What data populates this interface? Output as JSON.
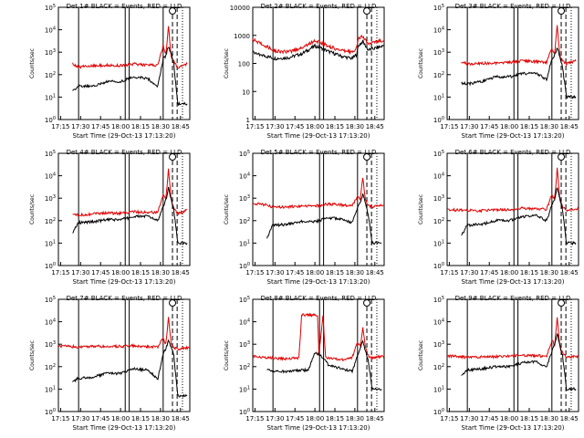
{
  "colors": {
    "background": "#ffffff",
    "axes": "#000000",
    "events": "#000000",
    "lld": "#e00000"
  },
  "shared": {
    "ylabel": "Counts/sec",
    "xlabel": "Start Time (29-Oct-13 17:13:20)",
    "xticks": [
      "17:15",
      "17:30",
      "17:45",
      "18:00",
      "18:15",
      "18:30",
      "18:45"
    ],
    "xtick_minutes": [
      15,
      30,
      45,
      60,
      75,
      90,
      105
    ],
    "xrange_minutes": [
      13.33,
      112
    ],
    "solid_marker_minutes": [
      28.5,
      63.5,
      66.5,
      92.0
    ],
    "dashed_marker_minutes": [
      99.0,
      102.5
    ],
    "dotted_marker_minutes": [
      106.5
    ],
    "circle_marker_minute": 99.0
  },
  "chart_data": [
    {
      "type": "line",
      "title": "Det 1# BLACK = Events, RED = LLD",
      "yscale": "log",
      "ylim": [
        1,
        100000
      ],
      "yticks": [
        "10^0",
        "10^1",
        "10^2",
        "10^3",
        "10^4",
        "10^5"
      ],
      "series": [
        {
          "name": "Events",
          "color": "#000000",
          "minutes": [
            24,
            28,
            40,
            50,
            60,
            70,
            80,
            88,
            92,
            94,
            96,
            98,
            100,
            103,
            110
          ],
          "values": [
            20,
            30,
            30,
            50,
            50,
            80,
            70,
            30,
            500,
            700,
            1800,
            900,
            300,
            5,
            5
          ]
        },
        {
          "name": "LLD",
          "color": "#e00000",
          "minutes": [
            24,
            28,
            40,
            50,
            60,
            70,
            80,
            88,
            92,
            94,
            96,
            98,
            100,
            103,
            110
          ],
          "values": [
            300,
            220,
            250,
            260,
            250,
            300,
            260,
            260,
            2000,
            800,
            15000,
            600,
            400,
            200,
            300
          ]
        }
      ]
    },
    {
      "type": "line",
      "title": "Det 2# BLACK = Events, RED = LLD",
      "yscale": "log",
      "ylim": [
        1,
        10000
      ],
      "yticks": [
        "1",
        "10",
        "100",
        "1000",
        "10000"
      ],
      "series": [
        {
          "name": "Events",
          "color": "#000000",
          "minutes": [
            13.33,
            20,
            30,
            40,
            50,
            55,
            60,
            65,
            70,
            80,
            88,
            91,
            93,
            96,
            100,
            110,
            112
          ],
          "values": [
            260,
            200,
            150,
            160,
            220,
            300,
            420,
            350,
            270,
            180,
            150,
            200,
            450,
            600,
            300,
            400,
            450
          ]
        },
        {
          "name": "LLD",
          "color": "#e00000",
          "minutes": [
            13.33,
            20,
            30,
            40,
            50,
            55,
            60,
            65,
            70,
            80,
            88,
            91,
            93,
            96,
            100,
            110,
            112
          ],
          "values": [
            700,
            500,
            280,
            250,
            360,
            480,
            650,
            550,
            420,
            280,
            260,
            350,
            800,
            900,
            500,
            650,
            700
          ]
        }
      ]
    },
    {
      "type": "line",
      "title": "Det 3# BLACK = Events, RED = LLD",
      "yscale": "log",
      "ylim": [
        1,
        100000
      ],
      "yticks": [
        "10^0",
        "10^1",
        "10^2",
        "10^3",
        "10^4",
        "10^5"
      ],
      "series": [
        {
          "name": "Events",
          "color": "#000000",
          "minutes": [
            24,
            30,
            40,
            50,
            60,
            70,
            80,
            88,
            92,
            94,
            96,
            98,
            100,
            103,
            110
          ],
          "values": [
            40,
            40,
            50,
            80,
            80,
            110,
            120,
            60,
            500,
            700,
            1500,
            700,
            200,
            10,
            10
          ]
        },
        {
          "name": "LLD",
          "color": "#e00000",
          "minutes": [
            24,
            30,
            40,
            50,
            60,
            70,
            80,
            88,
            92,
            94,
            96,
            98,
            100,
            103,
            110
          ],
          "values": [
            350,
            300,
            320,
            330,
            350,
            420,
            380,
            350,
            1500,
            800,
            15000,
            700,
            400,
            300,
            400
          ]
        }
      ]
    },
    {
      "type": "line",
      "title": "Det 4# BLACK = Events, RED = LLD",
      "yscale": "log",
      "ylim": [
        1,
        100000
      ],
      "yticks": [
        "10^0",
        "10^1",
        "10^2",
        "10^3",
        "10^4",
        "10^5"
      ],
      "series": [
        {
          "name": "Events",
          "color": "#000000",
          "minutes": [
            24,
            28,
            40,
            50,
            60,
            70,
            80,
            88,
            92,
            94,
            96,
            98,
            100,
            103,
            110
          ],
          "values": [
            30,
            80,
            90,
            110,
            110,
            150,
            160,
            100,
            400,
            800,
            3000,
            900,
            300,
            10,
            10
          ]
        },
        {
          "name": "LLD",
          "color": "#e00000",
          "minutes": [
            24,
            28,
            40,
            50,
            60,
            70,
            80,
            88,
            92,
            94,
            96,
            98,
            100,
            103,
            110
          ],
          "values": [
            200,
            180,
            200,
            220,
            210,
            250,
            230,
            230,
            1500,
            900,
            20000,
            900,
            400,
            200,
            300
          ]
        }
      ]
    },
    {
      "type": "line",
      "title": "Det 5# BLACK = Events, RED = LLD",
      "yscale": "log",
      "ylim": [
        1,
        100000
      ],
      "yticks": [
        "10^0",
        "10^1",
        "10^2",
        "10^3",
        "10^4",
        "10^5"
      ],
      "series": [
        {
          "name": "Events",
          "color": "#000000",
          "minutes": [
            24,
            28,
            40,
            50,
            60,
            70,
            80,
            88,
            92,
            94,
            96,
            98,
            100,
            103,
            110
          ],
          "values": [
            15,
            60,
            70,
            90,
            90,
            130,
            120,
            80,
            400,
            600,
            1500,
            600,
            200,
            10,
            10
          ]
        },
        {
          "name": "LLD",
          "color": "#e00000",
          "minutes": [
            13.33,
            24,
            28,
            40,
            50,
            60,
            70,
            80,
            88,
            92,
            94,
            96,
            98,
            100,
            103,
            112
          ],
          "values": [
            600,
            500,
            400,
            420,
            450,
            450,
            550,
            500,
            450,
            1200,
            900,
            8000,
            800,
            500,
            400,
            500
          ]
        }
      ]
    },
    {
      "type": "line",
      "title": "Det 6# BLACK = Events, RED = LLD",
      "yscale": "log",
      "ylim": [
        1,
        100000
      ],
      "yticks": [
        "10^0",
        "10^1",
        "10^2",
        "10^3",
        "10^4",
        "10^5"
      ],
      "series": [
        {
          "name": "Events",
          "color": "#000000",
          "minutes": [
            24,
            28,
            40,
            50,
            60,
            70,
            80,
            88,
            92,
            94,
            96,
            98,
            100,
            103,
            110
          ],
          "values": [
            20,
            60,
            70,
            100,
            100,
            150,
            170,
            100,
            500,
            900,
            3000,
            900,
            300,
            10,
            10
          ]
        },
        {
          "name": "LLD",
          "color": "#e00000",
          "minutes": [
            13.33,
            24,
            28,
            40,
            50,
            60,
            70,
            80,
            88,
            92,
            94,
            96,
            98,
            100,
            103,
            112
          ],
          "values": [
            300,
            300,
            280,
            280,
            300,
            300,
            360,
            330,
            320,
            1500,
            900,
            20000,
            900,
            400,
            300,
            350
          ]
        }
      ]
    },
    {
      "type": "line",
      "title": "Det 7# BLACK = Events, RED = LLD",
      "yscale": "log",
      "ylim": [
        1,
        100000
      ],
      "yticks": [
        "10^0",
        "10^1",
        "10^2",
        "10^3",
        "10^4",
        "10^5"
      ],
      "series": [
        {
          "name": "Events",
          "color": "#000000",
          "minutes": [
            24,
            28,
            40,
            50,
            60,
            70,
            80,
            88,
            92,
            94,
            96,
            98,
            100,
            103,
            110
          ],
          "values": [
            20,
            30,
            35,
            50,
            50,
            80,
            70,
            30,
            400,
            600,
            1500,
            800,
            300,
            5,
            5
          ]
        },
        {
          "name": "LLD",
          "color": "#e00000",
          "minutes": [
            13.33,
            24,
            28,
            40,
            50,
            60,
            70,
            80,
            88,
            92,
            94,
            96,
            98,
            100,
            103,
            112
          ],
          "values": [
            800,
            800,
            750,
            800,
            800,
            800,
            850,
            800,
            750,
            2000,
            1000,
            15000,
            1000,
            700,
            600,
            700
          ]
        }
      ]
    },
    {
      "type": "line",
      "title": "Det 8# BLACK = Events, RED = LLD",
      "yscale": "log",
      "ylim": [
        1,
        100000
      ],
      "yticks": [
        "10^0",
        "10^1",
        "10^2",
        "10^3",
        "10^4",
        "10^5"
      ],
      "series": [
        {
          "name": "Events",
          "color": "#000000",
          "minutes": [
            24,
            28,
            40,
            50,
            55,
            60,
            65,
            70,
            80,
            88,
            92,
            94,
            96,
            98,
            100,
            103,
            110
          ],
          "values": [
            70,
            60,
            60,
            70,
            70,
            400,
            300,
            120,
            80,
            60,
            300,
            700,
            1500,
            500,
            200,
            10,
            10
          ]
        },
        {
          "name": "LLD",
          "color": "#e00000",
          "minutes": [
            13.33,
            24,
            40,
            48,
            50,
            52,
            62,
            63,
            66,
            68,
            70,
            80,
            88,
            92,
            94,
            96,
            98,
            100,
            103,
            112
          ],
          "values": [
            300,
            250,
            220,
            250,
            20000,
            20000,
            20000,
            300,
            20000,
            250,
            250,
            200,
            250,
            1200,
            800,
            5000,
            700,
            300,
            250,
            300
          ]
        }
      ]
    },
    {
      "type": "line",
      "title": "Det 9# BLACK = Events, RED = LLD",
      "yscale": "log",
      "ylim": [
        1,
        100000
      ],
      "yticks": [
        "10^0",
        "10^1",
        "10^2",
        "10^3",
        "10^4",
        "10^5"
      ],
      "series": [
        {
          "name": "Events",
          "color": "#000000",
          "minutes": [
            24,
            28,
            40,
            50,
            60,
            70,
            80,
            88,
            92,
            94,
            96,
            98,
            100,
            103,
            110
          ],
          "values": [
            40,
            70,
            80,
            100,
            100,
            150,
            170,
            100,
            500,
            900,
            3000,
            900,
            300,
            10,
            10
          ]
        },
        {
          "name": "LLD",
          "color": "#e00000",
          "minutes": [
            13.33,
            24,
            28,
            40,
            50,
            60,
            70,
            80,
            88,
            92,
            94,
            96,
            98,
            100,
            103,
            112
          ],
          "values": [
            300,
            280,
            250,
            270,
            280,
            300,
            330,
            300,
            300,
            1500,
            900,
            15000,
            800,
            400,
            250,
            300
          ]
        }
      ]
    }
  ]
}
